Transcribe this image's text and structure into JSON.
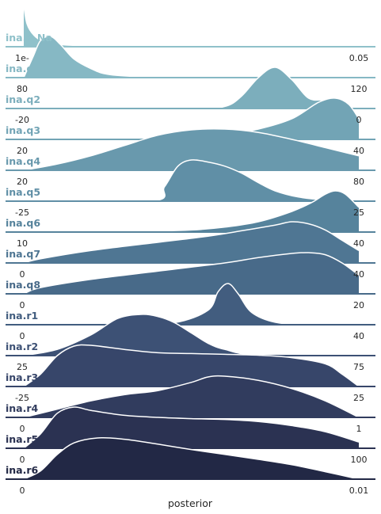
{
  "chart_data": {
    "type": "area",
    "subtype": "ridgeline",
    "xlabel": "posterior",
    "ylabel": "",
    "grid": false,
    "legend": "none",
    "series": [
      {
        "name": "ina.P_Na",
        "color": "#8fc1ca",
        "xlim_labels": [
          "1e-",
          "0.05"
        ],
        "x": [
          0,
          0.01,
          0.03,
          0.06,
          0.1,
          0.15,
          0.2,
          0.3,
          0.5,
          1
        ],
        "y": [
          1,
          0.55,
          0.28,
          0.12,
          0.06,
          0.03,
          0.015,
          0.005,
          0.001,
          0
        ]
      },
      {
        "name": "ina.q1",
        "color": "#86b8c4",
        "xlim_labels": [
          "80",
          "120"
        ],
        "x": [
          0,
          0.03,
          0.05,
          0.08,
          0.11,
          0.15,
          0.2,
          0.25,
          0.35,
          0.5,
          1
        ],
        "y": [
          0,
          0.55,
          0.9,
          1,
          0.8,
          0.45,
          0.22,
          0.08,
          0.02,
          0.005,
          0
        ]
      },
      {
        "name": "ina.q2",
        "color": "#7caebc",
        "xlim_labels": [
          "-20",
          "0"
        ],
        "x": [
          0,
          0.5,
          0.6,
          0.65,
          0.7,
          0.75,
          0.8,
          0.85,
          0.9,
          0.95,
          1
        ],
        "y": [
          0,
          0,
          0.05,
          0.3,
          0.75,
          1,
          0.7,
          0.25,
          0.2,
          0.08,
          0
        ]
      },
      {
        "name": "ina.q3",
        "color": "#72a4b5",
        "xlim_labels": [
          "20",
          "40"
        ],
        "x": [
          0,
          0.2,
          0.4,
          0.5,
          0.6,
          0.7,
          0.8,
          0.88,
          0.93,
          0.97,
          1
        ],
        "y": [
          0,
          0.005,
          0.03,
          0.06,
          0.12,
          0.25,
          0.5,
          0.9,
          1,
          0.85,
          0.5
        ]
      },
      {
        "name": "ina.q4",
        "color": "#6999ad",
        "xlim_labels": [
          "20",
          "80"
        ],
        "x": [
          0,
          0.1,
          0.2,
          0.3,
          0.4,
          0.5,
          0.6,
          0.7,
          0.8,
          0.9,
          1
        ],
        "y": [
          0,
          0.15,
          0.35,
          0.6,
          0.85,
          0.98,
          1,
          0.92,
          0.75,
          0.55,
          0.35
        ]
      },
      {
        "name": "ina.q5",
        "color": "#608fa6",
        "xlim_labels": [
          "-25",
          "25"
        ],
        "x": [
          0,
          0.38,
          0.42,
          0.46,
          0.5,
          0.55,
          0.6,
          0.65,
          0.7,
          0.75,
          0.82,
          0.9,
          1
        ],
        "y": [
          0,
          0,
          0.35,
          0.85,
          1,
          0.95,
          0.85,
          0.68,
          0.45,
          0.25,
          0.1,
          0.03,
          0
        ]
      },
      {
        "name": "ina.q6",
        "color": "#56839c",
        "xlim_labels": [
          "10",
          "40"
        ],
        "x": [
          0,
          0.3,
          0.5,
          0.6,
          0.7,
          0.8,
          0.86,
          0.9,
          0.93,
          0.96,
          1
        ],
        "y": [
          0,
          0.01,
          0.05,
          0.12,
          0.25,
          0.5,
          0.72,
          0.92,
          1,
          0.92,
          0.6
        ]
      },
      {
        "name": "ina.q7",
        "color": "#4f7693",
        "xlim_labels": [
          "0",
          "40"
        ],
        "x": [
          0,
          0.05,
          0.2,
          0.4,
          0.55,
          0.65,
          0.75,
          0.8,
          0.85,
          0.9,
          0.95,
          1
        ],
        "y": [
          0,
          0.1,
          0.3,
          0.5,
          0.65,
          0.78,
          0.92,
          1,
          0.95,
          0.8,
          0.55,
          0.3
        ]
      },
      {
        "name": "ina.q8",
        "color": "#486a89",
        "xlim_labels": [
          "0",
          "20"
        ],
        "x": [
          0,
          0.05,
          0.2,
          0.4,
          0.6,
          0.7,
          0.8,
          0.85,
          0.9,
          0.95,
          1
        ],
        "y": [
          0,
          0.15,
          0.35,
          0.55,
          0.75,
          0.88,
          0.98,
          1,
          0.95,
          0.75,
          0.45
        ]
      },
      {
        "name": "ina.r1",
        "color": "#425d7f",
        "xlim_labels": [
          "0",
          "40"
        ],
        "x": [
          0,
          0.3,
          0.45,
          0.55,
          0.58,
          0.61,
          0.64,
          0.68,
          0.75,
          0.85,
          1
        ],
        "y": [
          0,
          0.005,
          0.05,
          0.35,
          0.8,
          1,
          0.75,
          0.3,
          0.06,
          0.005,
          0
        ]
      },
      {
        "name": "ina.r2",
        "color": "#3d5175",
        "xlim_labels": [
          "25",
          "75"
        ],
        "x": [
          0,
          0.1,
          0.2,
          0.28,
          0.35,
          0.4,
          0.45,
          0.5,
          0.55,
          0.6,
          0.7,
          1
        ],
        "y": [
          0,
          0.15,
          0.5,
          0.9,
          1,
          0.95,
          0.8,
          0.55,
          0.3,
          0.15,
          0.01,
          0
        ]
      },
      {
        "name": "ina.r3",
        "color": "#37466a",
        "xlim_labels": [
          "-25",
          "25"
        ],
        "x": [
          0,
          0.05,
          0.1,
          0.15,
          0.2,
          0.3,
          0.4,
          0.5,
          0.6,
          0.7,
          0.8,
          0.9,
          0.95,
          1
        ],
        "y": [
          0,
          0.3,
          0.75,
          0.98,
          1,
          0.9,
          0.82,
          0.8,
          0.78,
          0.76,
          0.7,
          0.55,
          0.3,
          0
        ]
      },
      {
        "name": "ina.r4",
        "color": "#313c5e",
        "xlim_labels": [
          "0",
          "1"
        ],
        "x": [
          0,
          0.1,
          0.2,
          0.3,
          0.4,
          0.5,
          0.55,
          0.6,
          0.7,
          0.8,
          0.9,
          1
        ],
        "y": [
          0,
          0.2,
          0.4,
          0.55,
          0.65,
          0.85,
          0.98,
          1,
          0.9,
          0.7,
          0.4,
          0
        ]
      },
      {
        "name": "ina.r5",
        "color": "#2b3252",
        "xlim_labels": [
          "0",
          "100"
        ],
        "x": [
          0,
          0.05,
          0.1,
          0.15,
          0.2,
          0.3,
          0.4,
          0.5,
          0.6,
          0.7,
          0.8,
          0.9,
          1
        ],
        "y": [
          0,
          0.35,
          0.85,
          1,
          0.92,
          0.8,
          0.75,
          0.72,
          0.7,
          0.65,
          0.55,
          0.4,
          0.15
        ]
      },
      {
        "name": "ina.r6",
        "color": "#222845",
        "xlim_labels": [
          "0",
          "0.01"
        ],
        "x": [
          0,
          0.05,
          0.1,
          0.15,
          0.22,
          0.3,
          0.4,
          0.5,
          0.6,
          0.7,
          0.8,
          0.9,
          1
        ],
        "y": [
          0,
          0.2,
          0.6,
          0.88,
          1,
          0.97,
          0.85,
          0.72,
          0.6,
          0.48,
          0.35,
          0.18,
          0
        ]
      }
    ]
  }
}
